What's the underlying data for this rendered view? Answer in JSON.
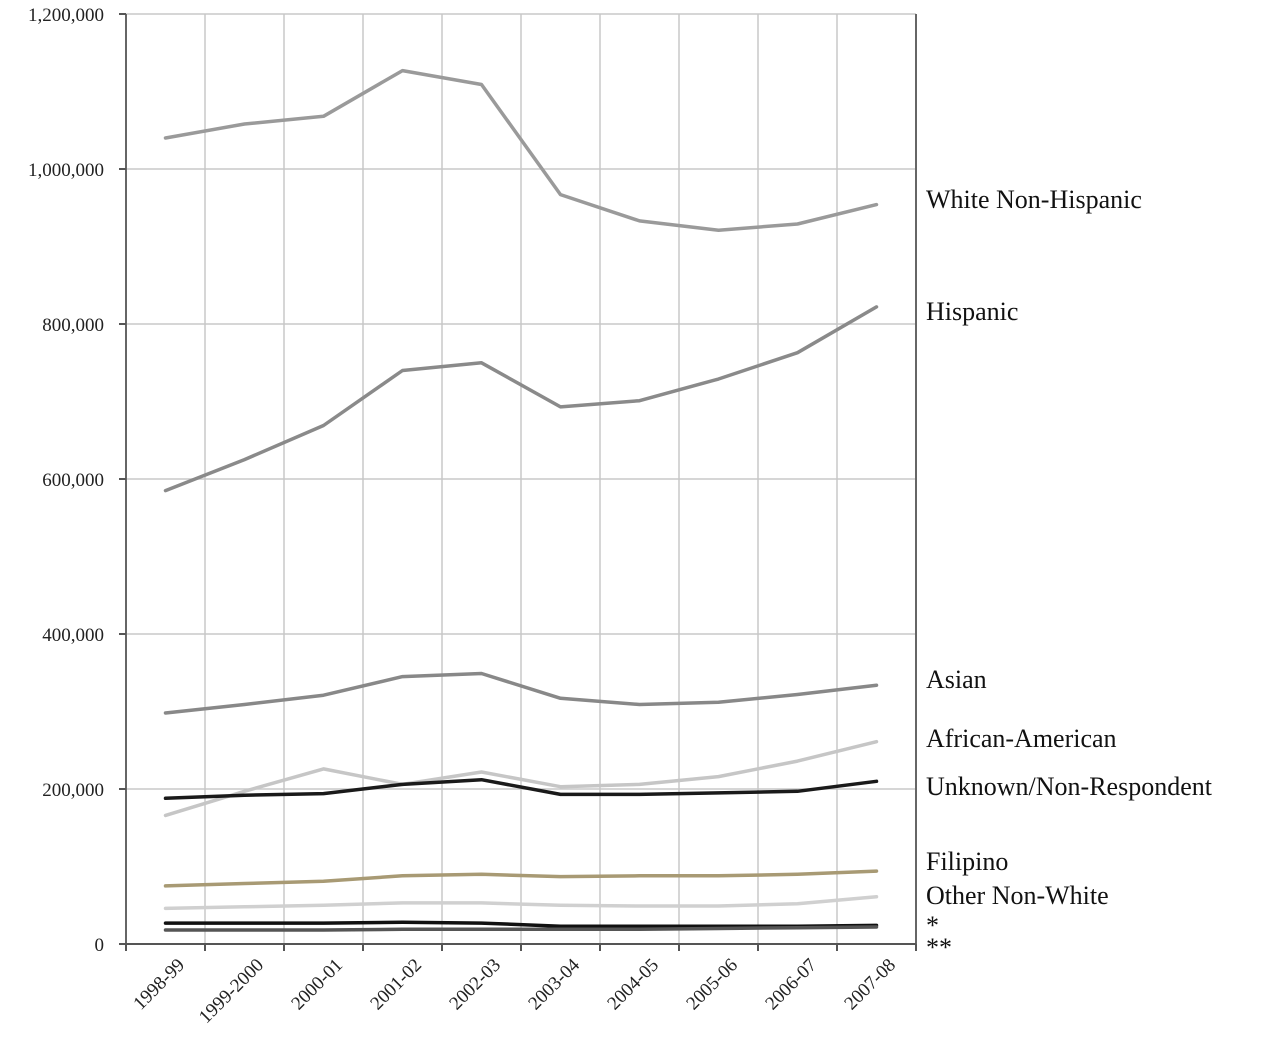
{
  "chart_data": {
    "type": "line",
    "title": "",
    "xlabel": "",
    "ylabel": "",
    "categories": [
      "1998-99",
      "1999-2000",
      "2000-01",
      "2001-02",
      "2002-03",
      "2003-04",
      "2004-05",
      "2005-06",
      "2006-07",
      "2007-08"
    ],
    "ylim": [
      0,
      1200000
    ],
    "yticks": [
      0,
      200000,
      400000,
      600000,
      800000,
      1000000,
      1200000
    ],
    "ytick_labels": [
      "0",
      "200,000",
      "400,000",
      "600,000",
      "800,000",
      "1,000,000",
      "1,200,000"
    ],
    "grid": true,
    "legend": "right, direct labels",
    "series": [
      {
        "name": "White Non-Hispanic",
        "color": "#9a9a9a",
        "values": [
          1040000,
          1058000,
          1068000,
          1127000,
          1109000,
          967000,
          933000,
          921000,
          929000,
          954000
        ]
      },
      {
        "name": "Hispanic",
        "color": "#8a8a8a",
        "values": [
          585000,
          625000,
          669000,
          740000,
          750000,
          693000,
          701000,
          729000,
          763000,
          822000
        ]
      },
      {
        "name": "Asian",
        "color": "#888888",
        "values": [
          298000,
          309000,
          321000,
          345000,
          349000,
          317000,
          309000,
          312000,
          322000,
          334000
        ]
      },
      {
        "name": "African-American",
        "color": "#c6c6c6",
        "values": [
          166000,
          197000,
          226000,
          206000,
          222000,
          203000,
          206000,
          216000,
          236000,
          261000
        ]
      },
      {
        "name": "Unknown/Non-Respondent",
        "color": "#1a1a1a",
        "values": [
          188000,
          192000,
          194000,
          206000,
          212000,
          193000,
          193000,
          195000,
          197000,
          210000
        ]
      },
      {
        "name": "Filipino",
        "color": "#a89a74",
        "values": [
          75000,
          78000,
          81000,
          88000,
          90000,
          87000,
          88000,
          88000,
          90000,
          94000
        ]
      },
      {
        "name": "Other Non-White",
        "color": "#d0d0d0",
        "values": [
          46000,
          48000,
          50000,
          53000,
          53000,
          50000,
          49000,
          49000,
          52000,
          61000
        ]
      },
      {
        "name": "*",
        "color": "#111111",
        "values": [
          27000,
          27000,
          27000,
          28000,
          27000,
          23000,
          23000,
          23000,
          23000,
          24000
        ]
      },
      {
        "name": "**",
        "color": "#555555",
        "values": [
          18000,
          18000,
          18000,
          19000,
          19000,
          19000,
          19000,
          20000,
          21000,
          22000
        ]
      }
    ]
  }
}
